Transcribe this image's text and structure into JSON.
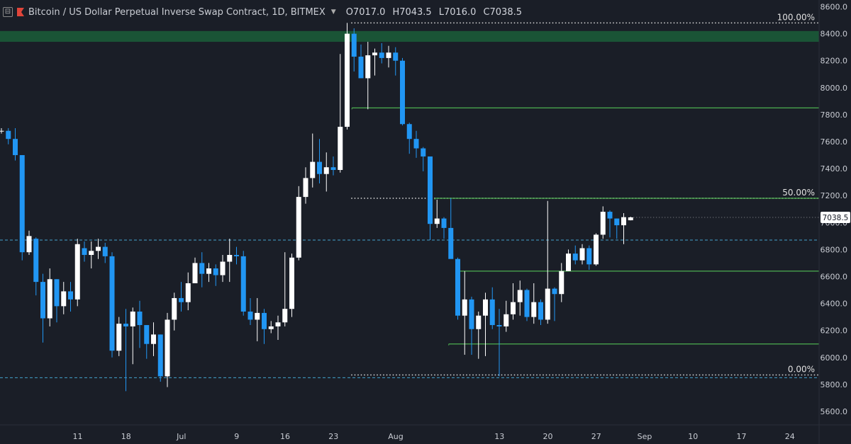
{
  "header": {
    "symbol_title": "Bitcoin / US Dollar Perpetual Inverse Swap Contract, 1D, BITMEX",
    "ohlc": [
      "O7017.0",
      "H7043.5",
      "L7016.0",
      "C7038.5"
    ]
  },
  "colors": {
    "background": "#1a1e27",
    "candle_up": "#ffffff",
    "candle_down": "#2196f3",
    "fib_dotted": "#e0e0e0",
    "support_green": "#4caf50",
    "dashed_teal": "#4fc3f7",
    "zone_fill": "#1b5e3a",
    "axis_text": "#c9ccd3"
  },
  "chart_data": {
    "type": "candlestick",
    "title": "Bitcoin / US Dollar Perpetual Inverse Swap Contract, 1D, BITMEX",
    "ylim": [
      5500,
      8650
    ],
    "y_ticks": [
      5600,
      5800,
      6000,
      6200,
      6400,
      6600,
      6800,
      7000,
      7200,
      7400,
      7600,
      7800,
      8000,
      8200,
      8400,
      8600
    ],
    "x_ticks": [
      "11",
      "18",
      "Jul",
      "9",
      "16",
      "23",
      "Aug",
      "13",
      "20",
      "27",
      "Sep",
      "10",
      "17",
      "24"
    ],
    "last_price": "7038.5",
    "candles": [
      [
        7680,
        7680,
        7700,
        7660
      ],
      [
        7680,
        7620,
        7700,
        7580
      ],
      [
        7620,
        7500,
        7700,
        7460
      ],
      [
        7500,
        6780,
        7500,
        6720
      ],
      [
        6780,
        6900,
        6940,
        6760
      ],
      [
        6880,
        6560,
        6890,
        6460
      ],
      [
        6560,
        6290,
        6620,
        6110
      ],
      [
        6290,
        6580,
        6660,
        6230
      ],
      [
        6580,
        6380,
        6580,
        6260
      ],
      [
        6380,
        6490,
        6560,
        6320
      ],
      [
        6490,
        6430,
        6560,
        6340
      ],
      [
        6430,
        6840,
        6880,
        6380
      ],
      [
        6810,
        6760,
        6860,
        6710
      ],
      [
        6760,
        6790,
        6860,
        6660
      ],
      [
        6790,
        6820,
        6880,
        6730
      ],
      [
        6820,
        6750,
        6850,
        6700
      ],
      [
        6750,
        6050,
        6780,
        6000
      ],
      [
        6050,
        6250,
        6300,
        6010
      ],
      [
        6250,
        6230,
        6360,
        5750
      ],
      [
        6230,
        6340,
        6370,
        5950
      ],
      [
        6340,
        6240,
        6420,
        6070
      ],
      [
        6240,
        6100,
        6240,
        5990
      ],
      [
        6100,
        6170,
        6260,
        6010
      ],
      [
        6170,
        5860,
        6170,
        5820
      ],
      [
        5860,
        6280,
        6330,
        5780
      ],
      [
        6280,
        6440,
        6480,
        6200
      ],
      [
        6440,
        6410,
        6560,
        6340
      ],
      [
        6410,
        6550,
        6630,
        6350
      ],
      [
        6550,
        6700,
        6740,
        6550
      ],
      [
        6700,
        6620,
        6780,
        6520
      ],
      [
        6620,
        6660,
        6700,
        6560
      ],
      [
        6660,
        6610,
        6690,
        6530
      ],
      [
        6610,
        6710,
        6760,
        6560
      ],
      [
        6710,
        6760,
        6880,
        6560
      ],
      [
        6760,
        6750,
        6820,
        6690
      ],
      [
        6750,
        6340,
        6790,
        6310
      ],
      [
        6340,
        6280,
        6440,
        6240
      ],
      [
        6280,
        6330,
        6440,
        6120
      ],
      [
        6330,
        6210,
        6360,
        6100
      ],
      [
        6210,
        6230,
        6270,
        6180
      ],
      [
        6230,
        6260,
        6310,
        6130
      ],
      [
        6260,
        6360,
        6780,
        6230
      ],
      [
        6360,
        6740,
        6770,
        6300
      ],
      [
        6740,
        7190,
        7270,
        6720
      ],
      [
        7190,
        7330,
        7410,
        7140
      ],
      [
        7330,
        7450,
        7660,
        7260
      ],
      [
        7450,
        7360,
        7620,
        7290
      ],
      [
        7360,
        7410,
        7520,
        7230
      ],
      [
        7410,
        7390,
        7490,
        7350
      ],
      [
        7390,
        7710,
        8250,
        7370
      ],
      [
        7710,
        8400,
        8480,
        7690
      ],
      [
        8400,
        8230,
        8440,
        8120
      ],
      [
        8230,
        8070,
        8320,
        8070
      ],
      [
        8070,
        8240,
        8340,
        7840
      ],
      [
        8240,
        8260,
        8290,
        8090
      ],
      [
        8260,
        8220,
        8330,
        8180
      ],
      [
        8220,
        8260,
        8310,
        8150
      ],
      [
        8260,
        8200,
        8300,
        8090
      ],
      [
        8200,
        7730,
        8220,
        7720
      ],
      [
        7730,
        7620,
        7740,
        7510
      ],
      [
        7620,
        7550,
        7680,
        7480
      ],
      [
        7550,
        7490,
        7560,
        7380
      ],
      [
        7490,
        6990,
        7490,
        6870
      ],
      [
        6990,
        7030,
        7170,
        6960
      ],
      [
        7030,
        6960,
        7040,
        6880
      ],
      [
        6960,
        6730,
        7180,
        6910
      ],
      [
        6730,
        6310,
        6740,
        6280
      ],
      [
        6310,
        6430,
        6640,
        6020
      ],
      [
        6430,
        6210,
        6450,
        6020
      ],
      [
        6210,
        6310,
        6340,
        5990
      ],
      [
        6310,
        6430,
        6480,
        6010
      ],
      [
        6430,
        6240,
        6520,
        6210
      ],
      [
        6240,
        6230,
        6360,
        5860
      ],
      [
        6230,
        6320,
        6420,
        6190
      ],
      [
        6320,
        6410,
        6550,
        6280
      ],
      [
        6410,
        6500,
        6570,
        6310
      ],
      [
        6500,
        6300,
        6510,
        6270
      ],
      [
        6300,
        6410,
        6550,
        6250
      ],
      [
        6410,
        6280,
        6430,
        6240
      ],
      [
        6280,
        6510,
        7160,
        6250
      ],
      [
        6510,
        6470,
        6520,
        6270
      ],
      [
        6470,
        6640,
        6700,
        6410
      ],
      [
        6640,
        6770,
        6800,
        6640
      ],
      [
        6770,
        6720,
        6830,
        6690
      ],
      [
        6720,
        6810,
        6840,
        6690
      ],
      [
        6810,
        6690,
        6830,
        6650
      ],
      [
        6690,
        6910,
        6920,
        6680
      ],
      [
        6910,
        7080,
        7120,
        6880
      ],
      [
        7080,
        7030,
        7090,
        6890
      ],
      [
        7030,
        6980,
        7030,
        6880
      ],
      [
        6980,
        7040,
        7070,
        6840
      ],
      [
        7017,
        7038.5,
        7043.5,
        7016
      ]
    ],
    "fib_levels": [
      {
        "label": "100.00%",
        "price": 8480
      },
      {
        "label": "50.00%",
        "price": 7180
      },
      {
        "label": "0.00%",
        "price": 5870
      }
    ],
    "dashed_levels": [
      6870,
      5850
    ],
    "support_lines": [
      {
        "price": 7850,
        "from_candle": 51
      },
      {
        "price": 7180,
        "from_candle": 63
      },
      {
        "price": 6640,
        "from_candle": 66
      },
      {
        "price": 6100,
        "from_candle": 65
      }
    ],
    "zone": {
      "low": 8340,
      "high": 8420
    }
  }
}
